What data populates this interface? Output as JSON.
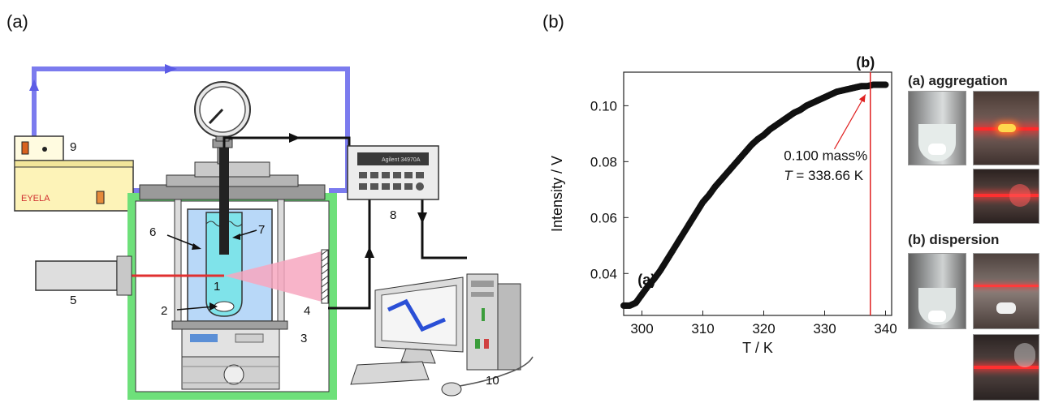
{
  "panels": {
    "a": "(a)",
    "b": "(b)"
  },
  "apparatus": {
    "numbers": [
      "1",
      "2",
      "3",
      "4",
      "5",
      "6",
      "7",
      "8",
      "9",
      "10"
    ],
    "bath_brand": "EYELA",
    "meter_brand": "Agilent 34970A",
    "colors": {
      "circulation_pipe": "#7b7bee",
      "enclosure": "#6ee07a",
      "water_bath": "#b8d8f8",
      "laser": "#e03030",
      "beam": "#f7a7c0"
    }
  },
  "chart_data": {
    "type": "scatter",
    "xlabel": "T / K",
    "ylabel": "Intensity / V",
    "xlim": [
      297,
      341
    ],
    "ylim": [
      0.025,
      0.112
    ],
    "xticks": [
      300,
      310,
      320,
      330,
      340
    ],
    "yticks": [
      0.04,
      0.06,
      0.08,
      0.1
    ],
    "x": [
      297.0,
      298.0,
      299.0,
      300.0,
      301.0,
      302.0,
      303.0,
      304.0,
      305.0,
      306.0,
      307.0,
      308.0,
      309.0,
      310.0,
      311.0,
      312.0,
      313.0,
      314.0,
      315.0,
      316.0,
      317.0,
      318.0,
      319.0,
      320.0,
      321.0,
      322.0,
      323.0,
      324.0,
      325.0,
      326.0,
      327.0,
      328.0,
      329.0,
      330.0,
      331.0,
      332.0,
      333.0,
      334.0,
      335.0,
      336.0,
      337.0,
      338.0,
      339.0,
      340.0
    ],
    "y": [
      0.0285,
      0.0285,
      0.0295,
      0.0325,
      0.0355,
      0.038,
      0.041,
      0.0445,
      0.048,
      0.0515,
      0.055,
      0.0585,
      0.062,
      0.0655,
      0.068,
      0.071,
      0.0735,
      0.076,
      0.0785,
      0.081,
      0.0835,
      0.086,
      0.088,
      0.0895,
      0.0915,
      0.093,
      0.0945,
      0.096,
      0.0975,
      0.0985,
      0.1,
      0.101,
      0.102,
      0.103,
      0.104,
      0.105,
      0.1055,
      0.106,
      0.1065,
      0.107,
      0.107,
      0.1075,
      0.1075,
      0.1075
    ],
    "series_color": "#111111",
    "marker_line": {
      "x": 337.5,
      "label": "(b)",
      "color": "#e02020"
    },
    "start_label": "(a)",
    "annotation": {
      "line1": "0.100 mass%",
      "line2_var": "T",
      "line2_value": " = 338.66 K"
    },
    "grid": false
  },
  "photos": {
    "aggregation_title": "(a) aggregation",
    "dispersion_title": "(b) dispersion"
  }
}
